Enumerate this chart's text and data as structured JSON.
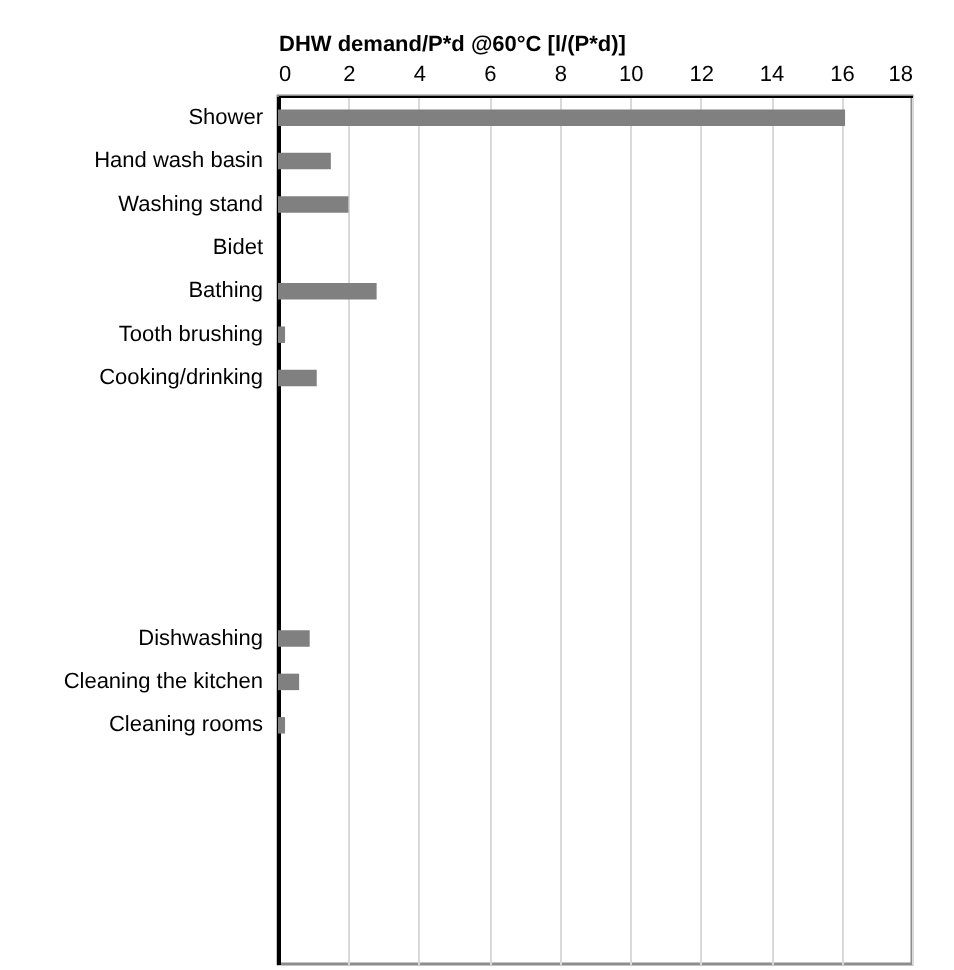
{
  "chart_data": {
    "type": "bar",
    "orientation": "horizontal",
    "xlabel": "DHW demand/P*d @60°C [l/(P*d)]",
    "categories": [
      "Shower",
      "Hand wash basin",
      "Washing stand",
      "Bidet",
      "Bathing",
      "Tooth brushing",
      "Cooking/drinking",
      null,
      null,
      null,
      null,
      null,
      "Dishwashing",
      "Cleaning the kitchen",
      "Cleaning rooms",
      null,
      null,
      null,
      null,
      null
    ],
    "values": [
      16.1,
      1.5,
      2,
      0,
      2.8,
      0.2,
      1.1,
      null,
      null,
      null,
      null,
      null,
      0.9,
      0.6,
      0.2,
      null,
      null,
      null,
      null,
      null
    ],
    "color": "#808080",
    "xlim": [
      0,
      18
    ],
    "xticks": [
      0,
      2,
      4,
      6,
      8,
      10,
      12,
      14,
      16,
      18
    ],
    "grid": "x"
  }
}
